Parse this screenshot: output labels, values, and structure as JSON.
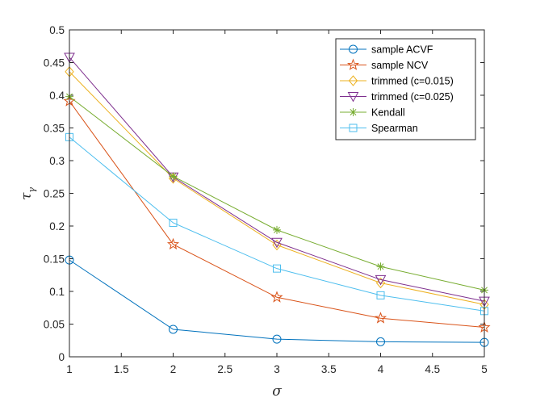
{
  "chart_data": {
    "type": "line",
    "xlabel": "σ",
    "ylabel": "τ",
    "ylabel_sub": "γ",
    "xlim": [
      1,
      5
    ],
    "ylim": [
      0,
      0.5
    ],
    "x": [
      1,
      2,
      3,
      4,
      5
    ],
    "xticks": [
      "1",
      "1.5",
      "2",
      "2.5",
      "3",
      "3.5",
      "4",
      "4.5",
      "5"
    ],
    "yticks": [
      "0",
      "0.05",
      "0.1",
      "0.15",
      "0.2",
      "0.25",
      "0.3",
      "0.35",
      "0.4",
      "0.45",
      "0.5"
    ],
    "grid": false,
    "legend_position": "top-right",
    "series": [
      {
        "name": "sample ACVF",
        "color": "#0072BD",
        "marker": "circle",
        "values": [
          0.148,
          0.042,
          0.027,
          0.023,
          0.022
        ]
      },
      {
        "name": "sample NCV",
        "color": "#D95319",
        "marker": "pentagram",
        "values": [
          0.391,
          0.172,
          0.091,
          0.059,
          0.045
        ]
      },
      {
        "name": "trimmed (c=0.015)",
        "color": "#EDB120",
        "marker": "diamond",
        "values": [
          0.436,
          0.273,
          0.171,
          0.113,
          0.08
        ]
      },
      {
        "name": "trimmed (c=0.025)",
        "color": "#7E2F8E",
        "marker": "triangle-down",
        "values": [
          0.458,
          0.275,
          0.175,
          0.118,
          0.085
        ]
      },
      {
        "name": "Kendall",
        "color": "#77AC30",
        "marker": "asterisk",
        "values": [
          0.398,
          0.276,
          0.194,
          0.138,
          0.102
        ]
      },
      {
        "name": "Spearman",
        "color": "#4DBEEE",
        "marker": "square",
        "values": [
          0.336,
          0.205,
          0.135,
          0.094,
          0.07
        ]
      }
    ]
  }
}
